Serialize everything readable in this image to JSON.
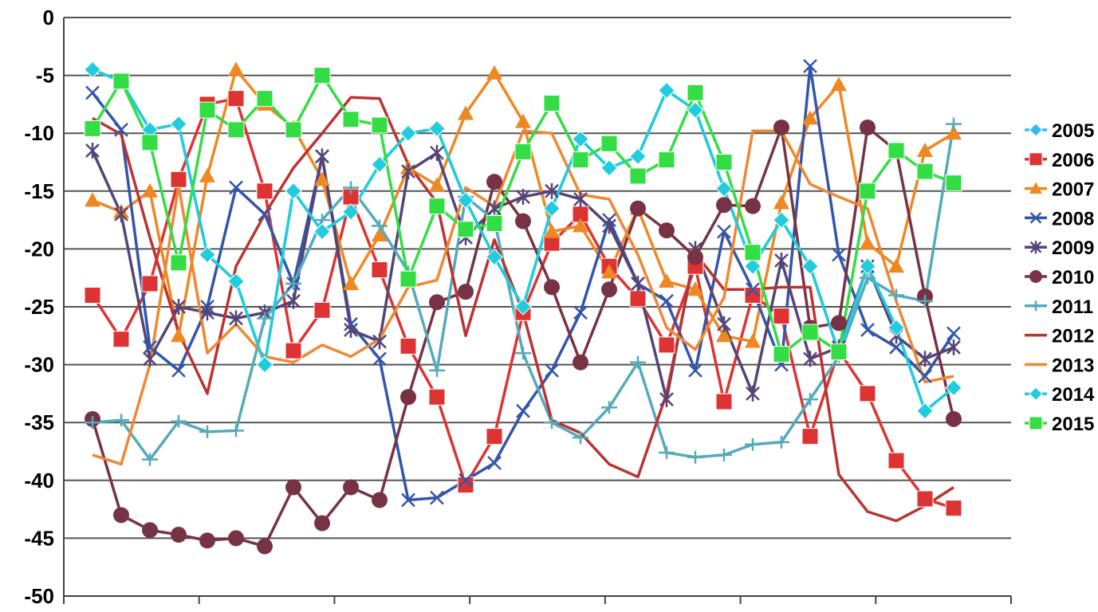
{
  "chart_data": {
    "type": "line",
    "title": "",
    "xlabel": "",
    "ylabel": "",
    "ylim": [
      -50,
      0
    ],
    "yticks": [
      0,
      -5,
      -10,
      -15,
      -20,
      -25,
      -30,
      -35,
      -40,
      -45,
      -50
    ],
    "ytick_labels": [
      "0",
      "-5",
      "-10",
      "-15",
      "-20",
      "-25",
      "-30",
      "-35",
      "-40",
      "-45",
      "-50"
    ],
    "x": [
      1,
      2,
      3,
      4,
      5,
      6,
      7,
      8,
      9,
      10,
      11,
      12,
      13,
      14,
      15,
      16,
      17,
      18,
      19,
      20,
      21,
      22,
      23,
      24,
      25,
      26,
      27,
      28,
      29,
      30,
      31
    ],
    "xlim": [
      0,
      33
    ],
    "grid": true,
    "legend": "right",
    "series": [
      {
        "name": "2005",
        "color": "#33bbee",
        "marker": "diamond",
        "values": [
          -4.5,
          -5.5,
          -9.7,
          -9.2,
          -20.5,
          -22.8,
          -30,
          -15,
          -18.5,
          -16.8,
          -12.7,
          -10,
          -9.6,
          -15.8,
          -20.7,
          -25,
          -16.5,
          -10.5,
          -13,
          -12,
          -6.3,
          -8,
          -14.8,
          -21.5,
          -17.5,
          -21.5,
          -29,
          -21.5,
          -26.8,
          -34,
          -32
        ]
      },
      {
        "name": "2006",
        "color": "#dd3333",
        "marker": "square",
        "values": [
          -24,
          -27.8,
          -23,
          -14,
          -7.5,
          -7,
          -15,
          -28.8,
          -25.3,
          -15.5,
          -21.8,
          -28.4,
          -32.8,
          -40.4,
          -36.2,
          -25.5,
          -19.5,
          -17,
          -21.5,
          -24.3,
          -28.3,
          -21.5,
          -33.2,
          -24,
          -25.8,
          -36.2,
          -28.8,
          -32.5,
          -38.3,
          -41.6,
          -42.4
        ]
      },
      {
        "name": "2007",
        "color": "#ee8822",
        "marker": "triangle",
        "values": [
          -15.8,
          -16.8,
          -15,
          -27.5,
          -13.7,
          -4.5,
          -7.5,
          -9.5,
          -14,
          -23,
          -18.8,
          -13,
          -14.5,
          -8.3,
          -4.8,
          -9,
          -18.5,
          -18,
          -22,
          -16.5,
          -22.8,
          -23.5,
          -27.5,
          -28,
          -16,
          -8.7,
          -5.8,
          -19.5,
          -21.5,
          -11.5,
          -10
        ]
      },
      {
        "name": "2008",
        "color": "#3355aa",
        "marker": "x",
        "values": [
          -6.5,
          -9.7,
          -28.5,
          -30.5,
          -25,
          -14.7,
          -17,
          -23,
          -12,
          -26.5,
          -29.5,
          -41.7,
          -41.5,
          -40,
          -38.5,
          -34,
          -30.5,
          -25.5,
          -17.5,
          -23,
          -24.5,
          -30.5,
          -18.5,
          -23.5,
          -30,
          -4.2,
          -20.5,
          -27,
          -28.5,
          -31,
          -27.3
        ]
      },
      {
        "name": "2009",
        "color": "#554477",
        "marker": "star",
        "values": [
          -11.5,
          -17,
          -29.5,
          -25,
          -25.5,
          -26,
          -25.5,
          -24.5,
          -12,
          -27,
          -28,
          -13.3,
          -11.7,
          -19,
          -16.5,
          -15.5,
          -15,
          -15.7,
          -18,
          -23,
          -33,
          -20,
          -26.5,
          -32.5,
          -21,
          -29.5,
          -28.5,
          -21.5,
          -27.5,
          -29.5,
          -28.5
        ]
      },
      {
        "name": "2010",
        "color": "#773344",
        "marker": "circle",
        "values": [
          -34.7,
          -43,
          -44.3,
          -44.7,
          -45.2,
          -45,
          -45.7,
          -40.6,
          -43.7,
          -40.6,
          -41.7,
          -32.8,
          -24.6,
          -23.7,
          -14.2,
          -17.6,
          -23.3,
          -29.8,
          -23.5,
          -16.5,
          -18.4,
          -20.7,
          -16.2,
          -16.3,
          -9.5,
          -26.8,
          -26.4,
          -9.5,
          -11.5,
          -24.1,
          -34.7
        ]
      },
      {
        "name": "2011",
        "color": "#55aabb",
        "marker": "plus",
        "values": [
          -35,
          -34.8,
          -38.2,
          -34.9,
          -35.8,
          -35.7,
          -26,
          -23,
          -17.5,
          -14.7,
          -18,
          -22,
          -30.5,
          -15.5,
          -17.5,
          -29,
          -35,
          -36.3,
          -33.7,
          -29.8,
          -37.6,
          -38,
          -37.8,
          -36.9,
          -36.7,
          -33,
          -29.3,
          -22.5,
          -24,
          -24.5,
          -9.2
        ]
      },
      {
        "name": "2012",
        "color": "#bb3333",
        "marker": "none",
        "values": [
          -8.7,
          -10.1,
          -19,
          -27.2,
          -32.5,
          -21.5,
          -17,
          -13,
          -10,
          -6.9,
          -7,
          -12.7,
          -16,
          -27.5,
          -19.2,
          -25.5,
          -34.8,
          -35.9,
          -38.6,
          -39.7,
          -32.5,
          -20.4,
          -23.5,
          -23.5,
          -23.3,
          -23.3,
          -39.5,
          -42.7,
          -43.5,
          -42.2,
          -40.6
        ]
      },
      {
        "name": "2013",
        "color": "#ee8833",
        "marker": "none",
        "values": [
          -37.8,
          -38.6,
          -30,
          -14.5,
          -29,
          -26.5,
          -29.3,
          -29.8,
          -28.3,
          -29.3,
          -27.8,
          -23.3,
          -22.7,
          -14.7,
          -16.3,
          -9.8,
          -10,
          -15.3,
          -15.7,
          -20.5,
          -26.8,
          -28.7,
          -24.2,
          -9.8,
          -9.8,
          -14.4,
          -15.5,
          -16.5,
          -24.5,
          -31.5,
          -31
        ]
      },
      {
        "name": "2014",
        "color": "#22ccdd",
        "marker": "diamond",
        "values": [
          -4.5,
          -5.5,
          -9.7,
          -9.2,
          -20.5,
          -22.8,
          -30,
          -15,
          -18.5,
          -16.8,
          -12.7,
          -10,
          -9.6,
          -15.8,
          -20.7,
          -25,
          -16.5,
          -10.5,
          -13,
          -12,
          -6.3,
          -8,
          -14.8,
          -21.5,
          -17.5,
          -21.5,
          -29,
          -21.5,
          -26.8,
          -34,
          -32
        ]
      },
      {
        "name": "2015",
        "color": "#33dd44",
        "marker": "square",
        "values": [
          -9.6,
          -5.5,
          -10.8,
          -21.2,
          -8,
          -9.7,
          -7,
          -9.7,
          -5,
          -8.8,
          -9.3,
          -22.6,
          -16.3,
          -18.3,
          -17.8,
          -11.6,
          -7.4,
          -12.3,
          -10.9,
          -13.7,
          -12.3,
          -6.5,
          -12.5,
          -20.3,
          -29.1,
          -27.2,
          -28.9,
          -15,
          -11.5,
          -13.3,
          -14.3
        ]
      }
    ]
  }
}
